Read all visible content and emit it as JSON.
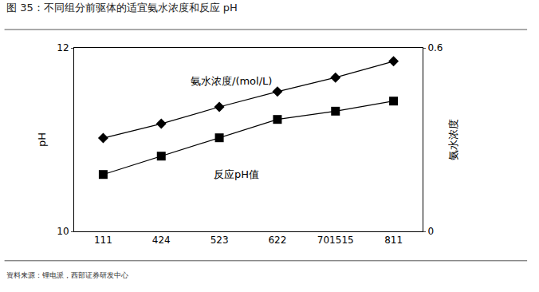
{
  "chart_data": {
    "type": "line",
    "title": "图 35：不同组分前驱体的适宜氨水浓度和反应 pH",
    "source": "资料来源：锂电派，西部证券研发中心",
    "y_label": "pH",
    "y2_label": "氨水浓度",
    "categories": [
      "111",
      "424",
      "523",
      "622",
      "701515",
      "811"
    ],
    "series": [
      {
        "name": "氨水浓度/(mol/L)",
        "color": "#000000",
        "marker": "diamond",
        "axis": "y2",
        "values": [
          0.305,
          0.352,
          0.407,
          0.457,
          0.503,
          0.556
        ]
      },
      {
        "name": "反应pH值",
        "color": "#000000",
        "marker": "square",
        "axis": "y",
        "values": [
          10.62,
          10.82,
          11.02,
          11.22,
          11.31,
          11.42
        ]
      }
    ],
    "ylim": [
      10,
      12
    ],
    "yticks": [
      10,
      12
    ],
    "y2lim": [
      0,
      0.6
    ],
    "y2ticks": [
      0,
      0.6
    ],
    "grid": false
  }
}
